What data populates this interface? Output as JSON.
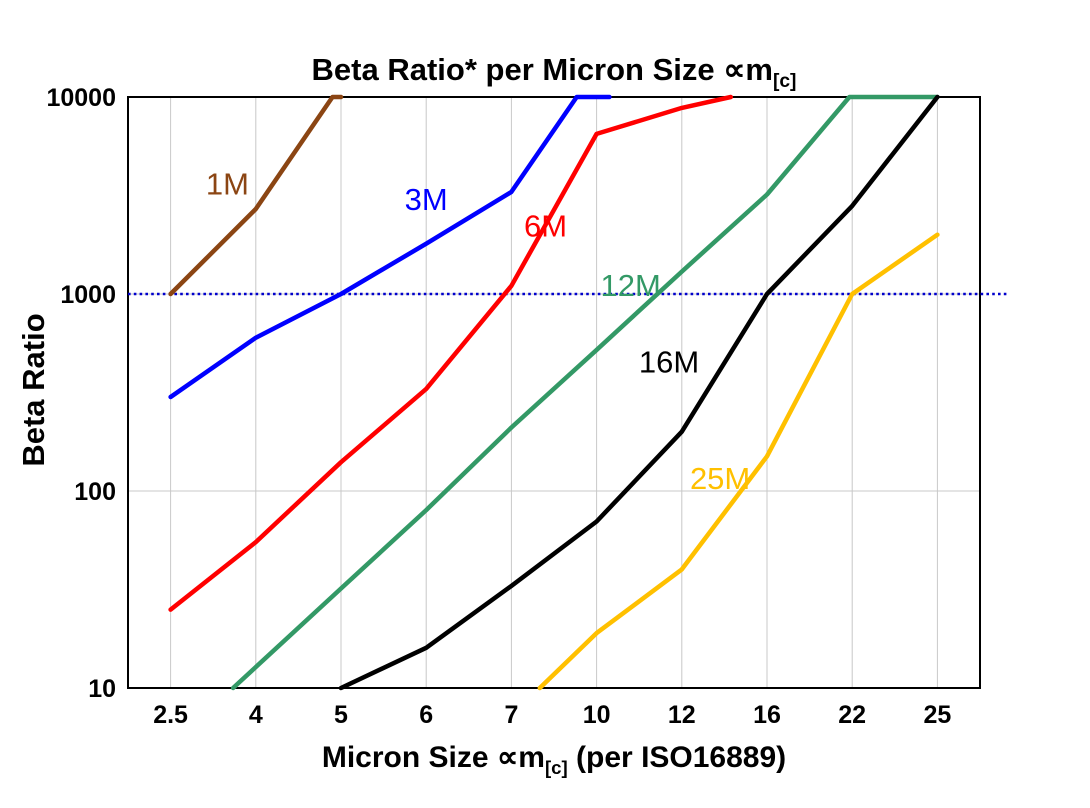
{
  "title": {
    "prefix": "Beta Ratio* per Micron Size ∝m",
    "subscript": "[c]"
  },
  "y_axis": {
    "label": "Beta Ratio"
  },
  "x_axis": {
    "prefix": "Micron Size ∝m",
    "subscript": "[c]",
    "suffix": " (per ISO16889)"
  },
  "chart_data": {
    "type": "line",
    "title": "Beta Ratio* per Micron Size ∝m[c]",
    "xlabel": "Micron Size ∝m[c] (per ISO16889)",
    "ylabel": "Beta Ratio",
    "x_scale": "category",
    "y_scale": "log",
    "categories": [
      2.5,
      4,
      5,
      6,
      7,
      10,
      12,
      16,
      22,
      25
    ],
    "ylim": [
      10,
      10000
    ],
    "y_ticks": [
      10,
      100,
      1000,
      10000
    ],
    "grid": {
      "vertical": true,
      "horizontal": true,
      "color": "#c8c8c8"
    },
    "legend": "none",
    "reference_line": {
      "y": 1000,
      "color": "#0000cc",
      "style": "dotted"
    },
    "series": [
      {
        "name": "1M",
        "color": "#8b4513",
        "points": [
          [
            2.5,
            1000
          ],
          [
            4,
            2700
          ],
          [
            4.9,
            10000
          ],
          [
            5,
            10000
          ]
        ],
        "label_pos": [
          3.5,
          3600
        ]
      },
      {
        "name": "3M",
        "color": "#0000ff",
        "points": [
          [
            2.5,
            300
          ],
          [
            4,
            600
          ],
          [
            5,
            1000
          ],
          [
            6,
            1800
          ],
          [
            7,
            3300
          ],
          [
            9.3,
            10000
          ],
          [
            10.3,
            10000
          ]
        ],
        "label_pos": [
          6,
          3000
        ]
      },
      {
        "name": "6M",
        "color": "#ff0000",
        "points": [
          [
            2.5,
            25
          ],
          [
            4,
            55
          ],
          [
            5,
            140
          ],
          [
            6,
            330
          ],
          [
            7,
            1100
          ],
          [
            10,
            6500
          ],
          [
            12,
            8800
          ],
          [
            14.3,
            10000
          ]
        ],
        "label_pos": [
          8.2,
          2200
        ]
      },
      {
        "name": "12M",
        "color": "#339966",
        "points": [
          [
            3.6,
            10
          ],
          [
            5,
            32
          ],
          [
            6,
            80
          ],
          [
            7,
            210
          ],
          [
            10,
            520
          ],
          [
            12,
            1300
          ],
          [
            16,
            3200
          ],
          [
            21.8,
            10000
          ],
          [
            25,
            10000
          ]
        ],
        "label_pos": [
          10.8,
          1100
        ]
      },
      {
        "name": "16M",
        "color": "#000000",
        "points": [
          [
            5,
            10
          ],
          [
            6,
            16
          ],
          [
            7,
            33
          ],
          [
            10,
            70
          ],
          [
            12,
            200
          ],
          [
            16,
            1000
          ],
          [
            22,
            2800
          ],
          [
            25,
            10000
          ]
        ],
        "label_pos": [
          11.7,
          450
        ]
      },
      {
        "name": "25M",
        "color": "#ffc000",
        "points": [
          [
            8,
            10
          ],
          [
            10,
            19
          ],
          [
            12,
            40
          ],
          [
            16,
            150
          ],
          [
            22,
            1000
          ],
          [
            25,
            2000
          ]
        ],
        "label_pos": [
          13.8,
          115
        ]
      }
    ]
  }
}
